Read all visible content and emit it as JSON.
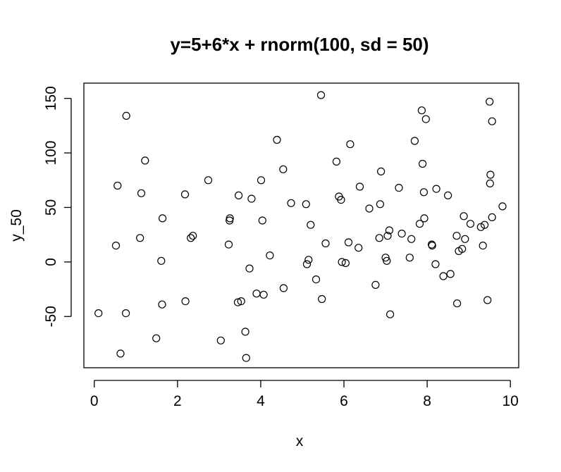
{
  "chart_data": {
    "type": "scatter",
    "title": "y=5+6*x + rnorm(100, sd = 50)",
    "xlabel": "x",
    "ylabel": "y_50",
    "xlim": [
      -0.25,
      10.2
    ],
    "ylim": [
      -97,
      164
    ],
    "xticks": [
      0,
      2,
      4,
      6,
      8,
      10
    ],
    "yticks": [
      -50,
      0,
      50,
      100,
      150
    ],
    "grid": false,
    "marker": "open-circle",
    "points": [
      [
        0.1,
        -47
      ],
      [
        0.52,
        15
      ],
      [
        0.56,
        70
      ],
      [
        0.63,
        -84
      ],
      [
        0.76,
        -47
      ],
      [
        0.77,
        134
      ],
      [
        1.1,
        22
      ],
      [
        1.13,
        63
      ],
      [
        1.22,
        93
      ],
      [
        1.49,
        -70
      ],
      [
        1.61,
        1
      ],
      [
        1.63,
        -39
      ],
      [
        1.64,
        40
      ],
      [
        2.18,
        62
      ],
      [
        2.19,
        -36
      ],
      [
        2.32,
        22
      ],
      [
        2.37,
        24
      ],
      [
        2.74,
        75
      ],
      [
        3.04,
        -72
      ],
      [
        3.23,
        16
      ],
      [
        3.25,
        38
      ],
      [
        3.26,
        40
      ],
      [
        3.45,
        -37
      ],
      [
        3.47,
        61
      ],
      [
        3.53,
        -36
      ],
      [
        3.63,
        -64
      ],
      [
        3.65,
        -88
      ],
      [
        3.73,
        -6
      ],
      [
        3.78,
        58
      ],
      [
        3.9,
        -29
      ],
      [
        4.01,
        75
      ],
      [
        4.04,
        38
      ],
      [
        4.07,
        -30
      ],
      [
        4.22,
        6
      ],
      [
        4.39,
        112
      ],
      [
        4.54,
        85
      ],
      [
        4.55,
        -24
      ],
      [
        4.73,
        54
      ],
      [
        5.09,
        53
      ],
      [
        5.11,
        -2
      ],
      [
        5.15,
        2
      ],
      [
        5.2,
        34
      ],
      [
        5.33,
        -16
      ],
      [
        5.45,
        153
      ],
      [
        5.47,
        -34
      ],
      [
        5.56,
        17
      ],
      [
        5.82,
        92
      ],
      [
        5.88,
        60
      ],
      [
        5.93,
        57
      ],
      [
        5.95,
        0
      ],
      [
        6.04,
        -1
      ],
      [
        6.11,
        18
      ],
      [
        6.15,
        108
      ],
      [
        6.35,
        13
      ],
      [
        6.38,
        69
      ],
      [
        6.61,
        49
      ],
      [
        6.76,
        -21
      ],
      [
        6.85,
        22
      ],
      [
        6.87,
        53
      ],
      [
        6.89,
        83
      ],
      [
        7.0,
        4
      ],
      [
        7.03,
        1
      ],
      [
        7.05,
        24
      ],
      [
        7.09,
        29
      ],
      [
        7.11,
        -48
      ],
      [
        7.32,
        68
      ],
      [
        7.39,
        26
      ],
      [
        7.58,
        4
      ],
      [
        7.62,
        21
      ],
      [
        7.7,
        111
      ],
      [
        7.82,
        35
      ],
      [
        7.87,
        139
      ],
      [
        7.89,
        90
      ],
      [
        7.92,
        64
      ],
      [
        7.93,
        40
      ],
      [
        7.97,
        131
      ],
      [
        8.11,
        16
      ],
      [
        8.12,
        15
      ],
      [
        8.2,
        -2
      ],
      [
        8.22,
        67
      ],
      [
        8.39,
        -13
      ],
      [
        8.5,
        61
      ],
      [
        8.56,
        -11
      ],
      [
        8.71,
        24
      ],
      [
        8.72,
        -38
      ],
      [
        8.76,
        10
      ],
      [
        8.84,
        12
      ],
      [
        8.88,
        42
      ],
      [
        8.91,
        21
      ],
      [
        9.04,
        35
      ],
      [
        9.29,
        32
      ],
      [
        9.34,
        15
      ],
      [
        9.38,
        34
      ],
      [
        9.45,
        -35
      ],
      [
        9.5,
        147
      ],
      [
        9.51,
        72
      ],
      [
        9.52,
        80
      ],
      [
        9.56,
        41
      ],
      [
        9.56,
        129
      ],
      [
        9.81,
        51
      ]
    ]
  }
}
